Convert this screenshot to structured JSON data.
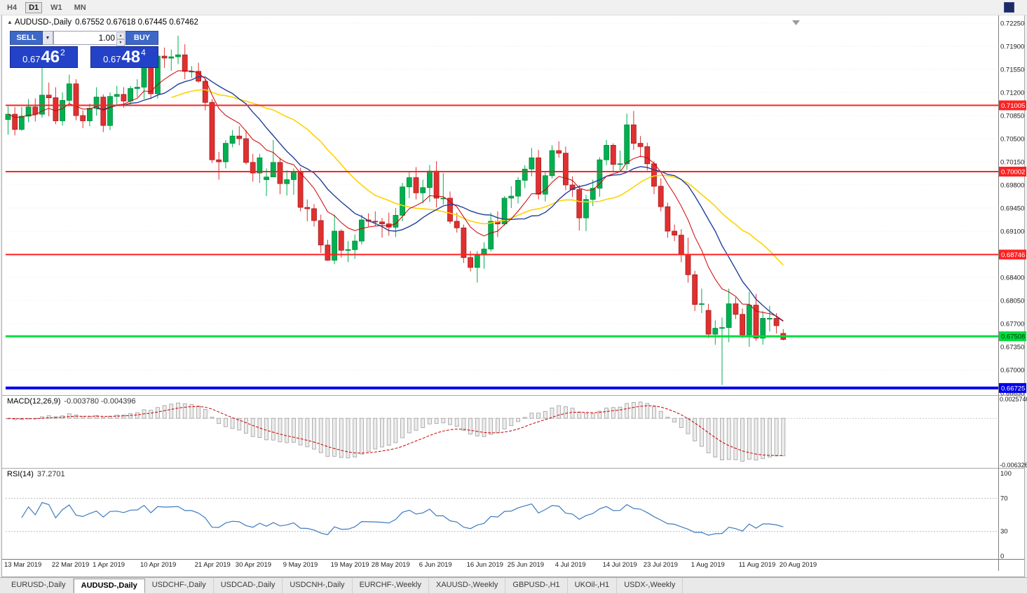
{
  "toolbar": {
    "timeframes": [
      "H4",
      "D1",
      "W1",
      "MN"
    ],
    "active": "D1"
  },
  "window": {
    "title_symbol": "AUDUSD-,Daily",
    "title_ohlc": "0.67552 0.67618 0.67445 0.67462"
  },
  "trade_panel": {
    "sell_label": "SELL",
    "buy_label": "BUY",
    "volume": "1.00",
    "sell_price_prefix": "0.67",
    "sell_price_big": "46",
    "sell_price_sup": "2",
    "buy_price_prefix": "0.67",
    "buy_price_big": "48",
    "buy_price_sup": "4"
  },
  "colors": {
    "bull": "#00b050",
    "bear": "#e03030",
    "bull_edge": "#008a3e",
    "bear_edge": "#a01f1f",
    "ma_slow_yellow": "#ffd300",
    "ma_mid_blue": "#20409a",
    "ma_fast_red": "#cc0000",
    "grid": "#ebebeb",
    "macd_hist_fill": "#ececec",
    "macd_hist_stroke": "#9e9e9e",
    "macd_signal": "#cc0000",
    "rsi_line": "#3e7bbf"
  },
  "hlines": [
    {
      "name": "resistance-71005",
      "price": 0.71005,
      "label": "0.71005",
      "color": "#ff2222",
      "text_color": "#ffffff",
      "width": 2
    },
    {
      "name": "resistance-70002",
      "price": 0.70002,
      "label": "0.70002",
      "color": "#ff2222",
      "text_color": "#ffffff",
      "width": 2
    },
    {
      "name": "support-68746",
      "price": 0.68746,
      "label": "0.68746",
      "color": "#ff2222",
      "text_color": "#ffffff",
      "width": 2
    },
    {
      "name": "support-67508",
      "price": 0.67508,
      "label": "0.67508",
      "color": "#00dd3e",
      "text_color": "#063306",
      "width": 3
    },
    {
      "name": "support-66725",
      "price": 0.66725,
      "label": "0.66725",
      "color": "#0000ee",
      "text_color": "#ffffff",
      "width": 4
    }
  ],
  "macd": {
    "label": "MACD(12,26,9)",
    "values_text": "-0.003780 -0.004396",
    "params": {
      "fast": 12,
      "slow": 26,
      "signal": 9
    },
    "scale": [
      {
        "text": "0.0025740",
        "value": 0.002574
      },
      {
        "text": "-0.0063265",
        "value": -0.0063265
      }
    ]
  },
  "rsi": {
    "label": "RSI(14)",
    "value_text": "37.2701",
    "period": 14,
    "levels": [
      70,
      30
    ],
    "scale": [
      {
        "text": "100",
        "value": 100
      },
      {
        "text": "70",
        "value": 70
      },
      {
        "text": "30",
        "value": 30
      },
      {
        "text": "0",
        "value": 0
      }
    ]
  },
  "chart_data": {
    "type": "candlestick",
    "symbol": "AUDUSD",
    "timeframe": "Daily",
    "ylim": [
      0.6665,
      0.7225
    ],
    "last_bar": {
      "open": 0.67552,
      "high": 0.67618,
      "low": 0.67445,
      "close": 0.67462
    },
    "support_resistance_levels": [
      0.71005,
      0.70002,
      0.68746,
      0.67508,
      0.66725
    ],
    "overlays": [
      {
        "type": "sma",
        "period": 25,
        "color": "#ffd300"
      },
      {
        "type": "sma",
        "period": 14,
        "color": "#20409a"
      },
      {
        "type": "ema",
        "period": 9,
        "color": "#cc0000"
      }
    ],
    "price_axis": [
      "0.72250",
      "0.71900",
      "0.71550",
      "0.71200",
      "0.70850",
      "0.70500",
      "0.70150",
      "0.69800",
      "0.69450",
      "0.69100",
      "0.68750",
      "0.68400",
      "0.68050",
      "0.67700",
      "0.67350",
      "0.67000",
      "0.66650"
    ],
    "date_labels": [
      {
        "text": "13 Mar 2019",
        "i": 0
      },
      {
        "text": "22 Mar 2019",
        "i": 7
      },
      {
        "text": "1 Apr 2019",
        "i": 13
      },
      {
        "text": "10 Apr 2019",
        "i": 20
      },
      {
        "text": "21 Apr 2019",
        "i": 28
      },
      {
        "text": "30 Apr 2019",
        "i": 34
      },
      {
        "text": "9 May 2019",
        "i": 41
      },
      {
        "text": "19 May 2019",
        "i": 48
      },
      {
        "text": "28 May 2019",
        "i": 54
      },
      {
        "text": "6 Jun 2019",
        "i": 61
      },
      {
        "text": "16 Jun 2019",
        "i": 68
      },
      {
        "text": "25 Jun 2019",
        "i": 74
      },
      {
        "text": "4 Jul 2019",
        "i": 81
      },
      {
        "text": "14 Jul 2019",
        "i": 88
      },
      {
        "text": "23 Jul 2019",
        "i": 94
      },
      {
        "text": "1 Aug 2019",
        "i": 101
      },
      {
        "text": "11 Aug 2019",
        "i": 108
      },
      {
        "text": "20 Aug 2019",
        "i": 114
      }
    ],
    "ohlc": [
      [
        0.7079,
        0.7099,
        0.7056,
        0.7087
      ],
      [
        0.7087,
        0.7098,
        0.7055,
        0.7064
      ],
      [
        0.7064,
        0.7098,
        0.7062,
        0.7084
      ],
      [
        0.7084,
        0.711,
        0.7075,
        0.7098
      ],
      [
        0.7098,
        0.7111,
        0.7076,
        0.7087
      ],
      [
        0.7087,
        0.7168,
        0.7082,
        0.7116
      ],
      [
        0.7116,
        0.7135,
        0.7084,
        0.7112
      ],
      [
        0.7112,
        0.7128,
        0.7072,
        0.7077
      ],
      [
        0.7077,
        0.712,
        0.707,
        0.7108
      ],
      [
        0.7108,
        0.7147,
        0.7103,
        0.7133
      ],
      [
        0.7133,
        0.714,
        0.7078,
        0.7085
      ],
      [
        0.7085,
        0.7093,
        0.7066,
        0.7077
      ],
      [
        0.7077,
        0.7103,
        0.7069,
        0.7096
      ],
      [
        0.7096,
        0.7128,
        0.7085,
        0.7113
      ],
      [
        0.7113,
        0.7117,
        0.706,
        0.707
      ],
      [
        0.707,
        0.712,
        0.7063,
        0.7114
      ],
      [
        0.7114,
        0.713,
        0.71,
        0.7117
      ],
      [
        0.7117,
        0.7128,
        0.7097,
        0.7107
      ],
      [
        0.7107,
        0.713,
        0.71,
        0.7126
      ],
      [
        0.7126,
        0.714,
        0.7113,
        0.7128
      ],
      [
        0.7128,
        0.717,
        0.711,
        0.7166
      ],
      [
        0.7166,
        0.7175,
        0.711,
        0.7118
      ],
      [
        0.7118,
        0.718,
        0.7111,
        0.7175
      ],
      [
        0.7175,
        0.7188,
        0.7157,
        0.7172
      ],
      [
        0.7172,
        0.7185,
        0.7153,
        0.7174
      ],
      [
        0.7174,
        0.7206,
        0.7163,
        0.7177
      ],
      [
        0.7177,
        0.7193,
        0.714,
        0.7152
      ],
      [
        0.7152,
        0.716,
        0.7142,
        0.7152
      ],
      [
        0.7152,
        0.7165,
        0.7135,
        0.7137
      ],
      [
        0.7137,
        0.7141,
        0.7093,
        0.7105
      ],
      [
        0.7105,
        0.711,
        0.7013,
        0.7018
      ],
      [
        0.7018,
        0.703,
        0.6988,
        0.7015
      ],
      [
        0.7015,
        0.7048,
        0.7005,
        0.7043
      ],
      [
        0.7043,
        0.7063,
        0.7037,
        0.7054
      ],
      [
        0.7054,
        0.7069,
        0.704,
        0.705
      ],
      [
        0.705,
        0.7063,
        0.7011,
        0.7014
      ],
      [
        0.7014,
        0.7027,
        0.6985,
        0.6998
      ],
      [
        0.6998,
        0.7027,
        0.6983,
        0.7021
      ],
      [
        0.6988,
        0.7005,
        0.6963,
        0.6992
      ],
      [
        0.6992,
        0.7048,
        0.6992,
        0.7014
      ],
      [
        0.7014,
        0.7021,
        0.6966,
        0.6982
      ],
      [
        0.6982,
        0.7002,
        0.6964,
        0.6988
      ],
      [
        0.6988,
        0.7005,
        0.6965,
        0.7
      ],
      [
        0.7,
        0.7006,
        0.694,
        0.6946
      ],
      [
        0.6946,
        0.6958,
        0.6925,
        0.6944
      ],
      [
        0.6944,
        0.6951,
        0.6917,
        0.6926
      ],
      [
        0.6926,
        0.6935,
        0.6877,
        0.6889
      ],
      [
        0.6889,
        0.6897,
        0.6865,
        0.6866
      ],
      [
        0.6866,
        0.6935,
        0.686,
        0.691
      ],
      [
        0.691,
        0.6913,
        0.687,
        0.6881
      ],
      [
        0.6881,
        0.6895,
        0.6863,
        0.6882
      ],
      [
        0.6882,
        0.6905,
        0.6868,
        0.6895
      ],
      [
        0.6895,
        0.6935,
        0.689,
        0.6927
      ],
      [
        0.6927,
        0.6937,
        0.6917,
        0.6925
      ],
      [
        0.6925,
        0.694,
        0.6918,
        0.6924
      ],
      [
        0.6924,
        0.693,
        0.69,
        0.6921
      ],
      [
        0.6921,
        0.6938,
        0.6903,
        0.6916
      ],
      [
        0.6916,
        0.6945,
        0.6901,
        0.6934
      ],
      [
        0.6934,
        0.6983,
        0.6925,
        0.6977
      ],
      [
        0.6977,
        0.7,
        0.696,
        0.6991
      ],
      [
        0.6991,
        0.7007,
        0.6958,
        0.6968
      ],
      [
        0.6968,
        0.6988,
        0.6952,
        0.6976
      ],
      [
        0.6976,
        0.701,
        0.6954,
        0.7001
      ],
      [
        0.7001,
        0.7016,
        0.6946,
        0.696
      ],
      [
        0.696,
        0.6998,
        0.695,
        0.696
      ],
      [
        0.696,
        0.697,
        0.6921,
        0.6925
      ],
      [
        0.6925,
        0.6938,
        0.6908,
        0.6915
      ],
      [
        0.6915,
        0.692,
        0.6862,
        0.687
      ],
      [
        0.687,
        0.688,
        0.6849,
        0.6855
      ],
      [
        0.6855,
        0.688,
        0.6832,
        0.6874
      ],
      [
        0.6874,
        0.6893,
        0.6853,
        0.6883
      ],
      [
        0.6883,
        0.6938,
        0.6879,
        0.6925
      ],
      [
        0.6925,
        0.694,
        0.6901,
        0.6921
      ],
      [
        0.6921,
        0.6963,
        0.6918,
        0.696
      ],
      [
        0.696,
        0.6978,
        0.6945,
        0.6963
      ],
      [
        0.6963,
        0.6992,
        0.6952,
        0.6987
      ],
      [
        0.6987,
        0.701,
        0.6975,
        0.7004
      ],
      [
        0.7004,
        0.7036,
        0.6993,
        0.7021
      ],
      [
        0.7021,
        0.7033,
        0.6958,
        0.6966
      ],
      [
        0.6966,
        0.7,
        0.6955,
        0.6994
      ],
      [
        0.6994,
        0.704,
        0.699,
        0.7032
      ],
      [
        0.7032,
        0.7046,
        0.7021,
        0.7028
      ],
      [
        0.7028,
        0.7038,
        0.6972,
        0.698
      ],
      [
        0.698,
        0.6993,
        0.6962,
        0.6973
      ],
      [
        0.6973,
        0.698,
        0.6911,
        0.693
      ],
      [
        0.693,
        0.6965,
        0.691,
        0.6958
      ],
      [
        0.6958,
        0.6988,
        0.6948,
        0.6975
      ],
      [
        0.6975,
        0.7022,
        0.6962,
        0.7018
      ],
      [
        0.7018,
        0.7048,
        0.701,
        0.704
      ],
      [
        0.704,
        0.7043,
        0.7001,
        0.7011
      ],
      [
        0.7011,
        0.7032,
        0.7,
        0.7012
      ],
      [
        0.7012,
        0.7088,
        0.7003,
        0.7071
      ],
      [
        0.7071,
        0.7092,
        0.7033,
        0.7043
      ],
      [
        0.7043,
        0.7054,
        0.7022,
        0.7038
      ],
      [
        0.7038,
        0.7044,
        0.7002,
        0.7012
      ],
      [
        0.7012,
        0.7016,
        0.6966,
        0.6978
      ],
      [
        0.6978,
        0.699,
        0.694,
        0.6947
      ],
      [
        0.6947,
        0.6953,
        0.69,
        0.691
      ],
      [
        0.691,
        0.692,
        0.6895,
        0.6904
      ],
      [
        0.6904,
        0.6913,
        0.6863,
        0.6875
      ],
      [
        0.6875,
        0.69,
        0.6832,
        0.6844
      ],
      [
        0.6844,
        0.685,
        0.6789,
        0.6799
      ],
      [
        0.6799,
        0.6823,
        0.6786,
        0.68
      ],
      [
        0.679,
        0.68,
        0.6748,
        0.6754
      ],
      [
        0.6754,
        0.6775,
        0.6738,
        0.6763
      ],
      [
        0.6763,
        0.6779,
        0.6677,
        0.6764
      ],
      [
        0.6764,
        0.6823,
        0.6742,
        0.68
      ],
      [
        0.68,
        0.681,
        0.6777,
        0.6784
      ],
      [
        0.6784,
        0.6793,
        0.6748,
        0.6753
      ],
      [
        0.6753,
        0.6818,
        0.6735,
        0.6798
      ],
      [
        0.6798,
        0.6815,
        0.6744,
        0.6748
      ],
      [
        0.6748,
        0.6789,
        0.6738,
        0.6778
      ],
      [
        0.6778,
        0.6797,
        0.6758,
        0.6778
      ],
      [
        0.6778,
        0.6786,
        0.6755,
        0.6767
      ],
      [
        0.67552,
        0.67618,
        0.67445,
        0.67462
      ]
    ]
  },
  "tabs": [
    {
      "label": "EURUSD-,Daily",
      "active": false
    },
    {
      "label": "AUDUSD-,Daily",
      "active": true
    },
    {
      "label": "USDCHF-,Daily",
      "active": false
    },
    {
      "label": "USDCAD-,Daily",
      "active": false
    },
    {
      "label": "USDCNH-,Daily",
      "active": false
    },
    {
      "label": "EURCHF-,Weekly",
      "active": false
    },
    {
      "label": "XAUUSD-,Weekly",
      "active": false
    },
    {
      "label": "GBPUSD-,H1",
      "active": false
    },
    {
      "label": "UKOil-,H1",
      "active": false
    },
    {
      "label": "USDX-,Weekly",
      "active": false
    }
  ]
}
